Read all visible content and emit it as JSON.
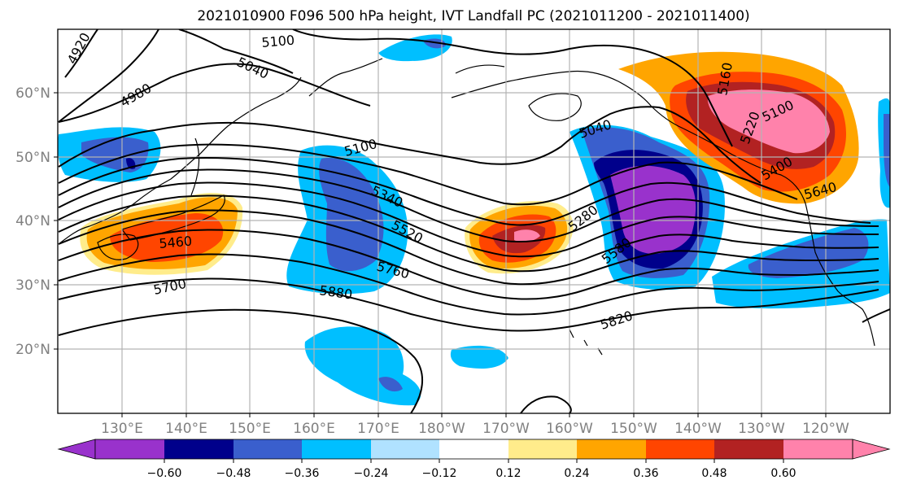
{
  "title": "2021010900 F096 500 hPa height, IVT Landfall PC (2021011200 - 2021011400)",
  "x_ticks": [
    "130°E",
    "140°E",
    "150°E",
    "160°E",
    "170°E",
    "180°W",
    "170°W",
    "160°W",
    "150°W",
    "140°W",
    "130°W",
    "120°W"
  ],
  "y_ticks": [
    "20°N",
    "30°N",
    "40°N",
    "50°N",
    "60°N"
  ],
  "colorbar": {
    "ticks": [
      "−0.60",
      "−0.48",
      "−0.36",
      "−0.24",
      "−0.12",
      "0.12",
      "0.24",
      "0.36",
      "0.48",
      "0.60"
    ],
    "colors": [
      "#9932cc",
      "#00008b",
      "#3a5fcd",
      "#00bfff",
      "#b0e2ff",
      "#ffffff",
      "#ffec8b",
      "#ffa500",
      "#ff4500",
      "#b22222",
      "#ff82ab",
      "#ff82ab"
    ]
  },
  "contour_labels": [
    "4920",
    "4980",
    "5040",
    "5100",
    "5100",
    "5040",
    "5100",
    "5340",
    "5520",
    "5460",
    "5700",
    "5760",
    "5880",
    "5280",
    "5580",
    "5820",
    "5640",
    "5400",
    "5160",
    "5220"
  ],
  "colors": {
    "frame": "#000000",
    "grid": "#b3b3b3",
    "tick_label": "#808080",
    "coast": "#000000"
  }
}
